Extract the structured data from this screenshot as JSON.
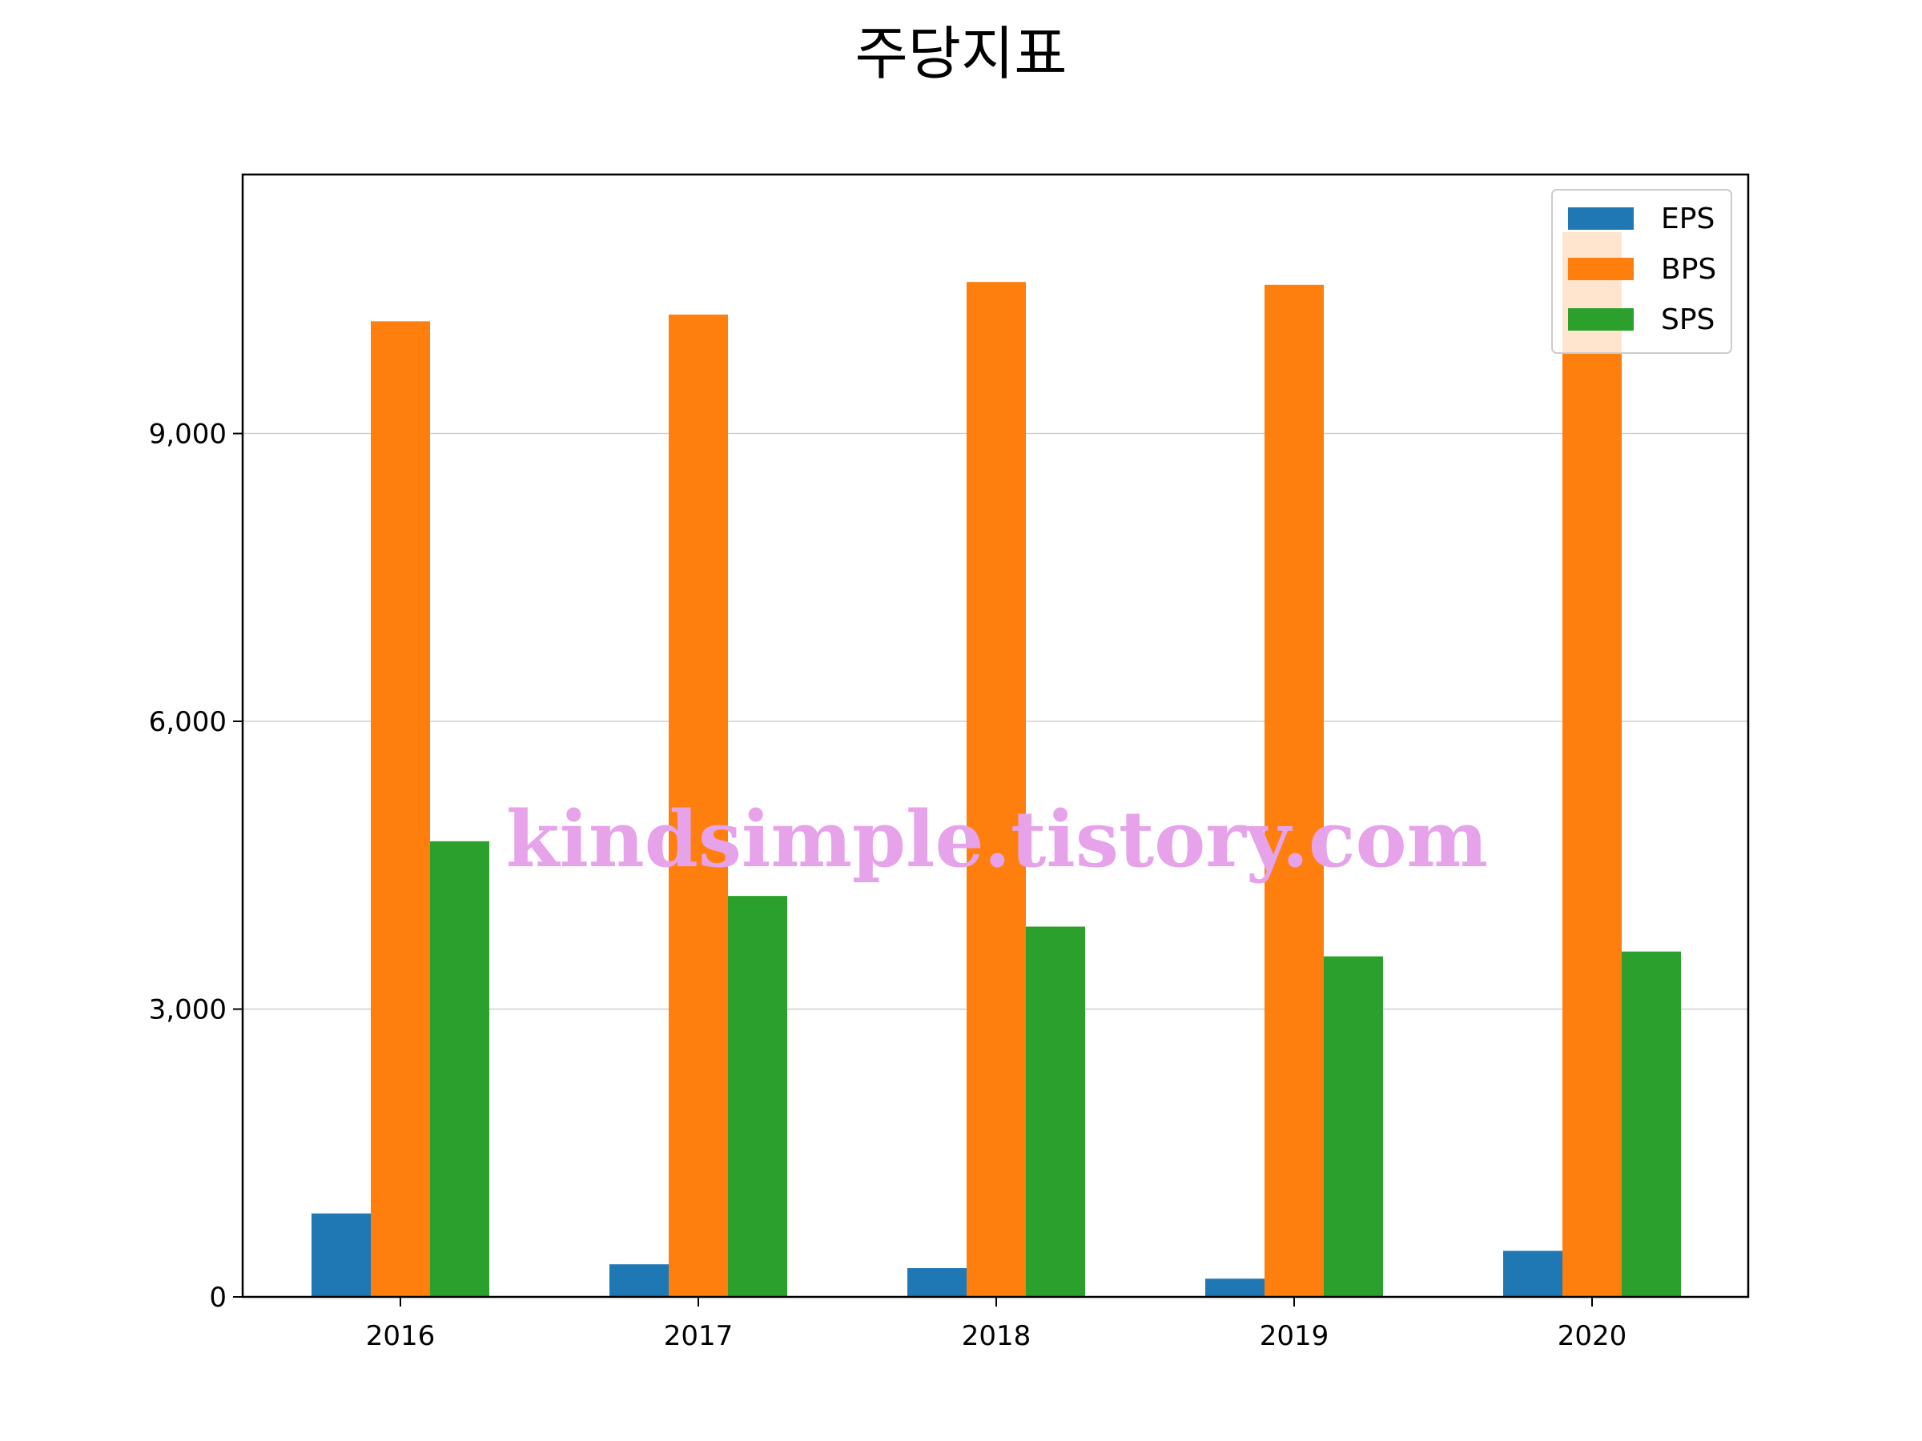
{
  "chart_data": {
    "type": "bar",
    "title": "주당지표",
    "xlabel": "",
    "ylabel": "",
    "categories": [
      "2016",
      "2017",
      "2018",
      "2019",
      "2020"
    ],
    "series": [
      {
        "name": "EPS",
        "color": "#1f77b4",
        "values": [
          870,
          340,
          300,
          190,
          480
        ]
      },
      {
        "name": "BPS",
        "color": "#ff7f0e",
        "values": [
          10170,
          10240,
          10580,
          10550,
          11100
        ]
      },
      {
        "name": "SPS",
        "color": "#2ca02c",
        "values": [
          4750,
          4180,
          3860,
          3550,
          3600
        ]
      }
    ],
    "ylim": [
      0,
      11700
    ],
    "yticks": [
      0,
      3000,
      6000,
      9000
    ],
    "ytick_labels": [
      "0",
      "3,000",
      "6,000",
      "9,000"
    ],
    "grid": "y",
    "legend_position": "top-right"
  },
  "watermark": "kindsimple.tistory.com"
}
